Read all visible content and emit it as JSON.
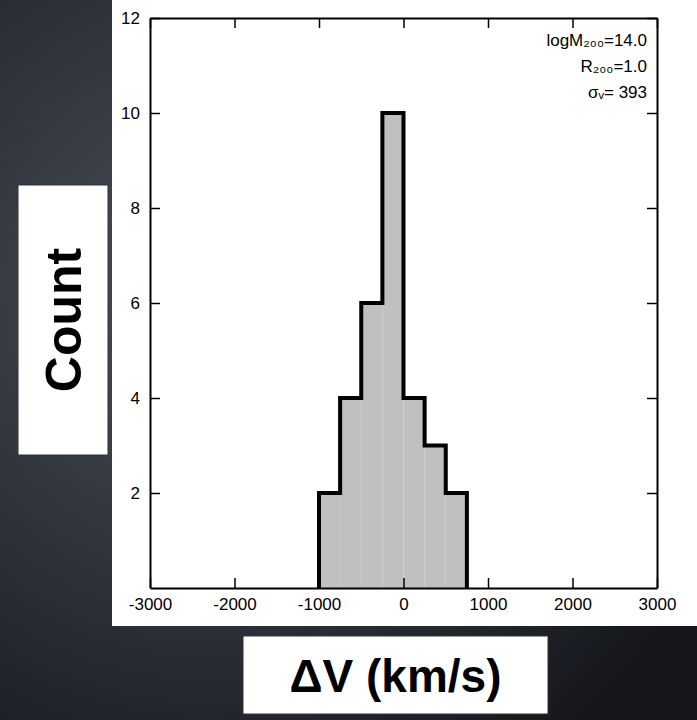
{
  "chart_data": {
    "type": "histogram",
    "xlabel": "ΔV (km/s)",
    "ylabel": "Count",
    "bins": [
      -1000,
      -750,
      -500,
      -250,
      0,
      250,
      500,
      750
    ],
    "values": [
      2,
      4,
      6,
      10,
      4,
      3,
      2
    ],
    "color": "#c0c0c0",
    "xlim": [
      -3000,
      3000
    ],
    "xticks": [
      -3000,
      -2000,
      -1000,
      0,
      1000,
      2000,
      3000
    ],
    "ylim": [
      0,
      12
    ],
    "yticks": [
      2,
      4,
      6,
      8,
      10,
      12
    ],
    "annotations": [
      "logM₂₀₀=14.0",
      "R₂₀₀=1.0",
      "σᵥ= 393"
    ]
  }
}
